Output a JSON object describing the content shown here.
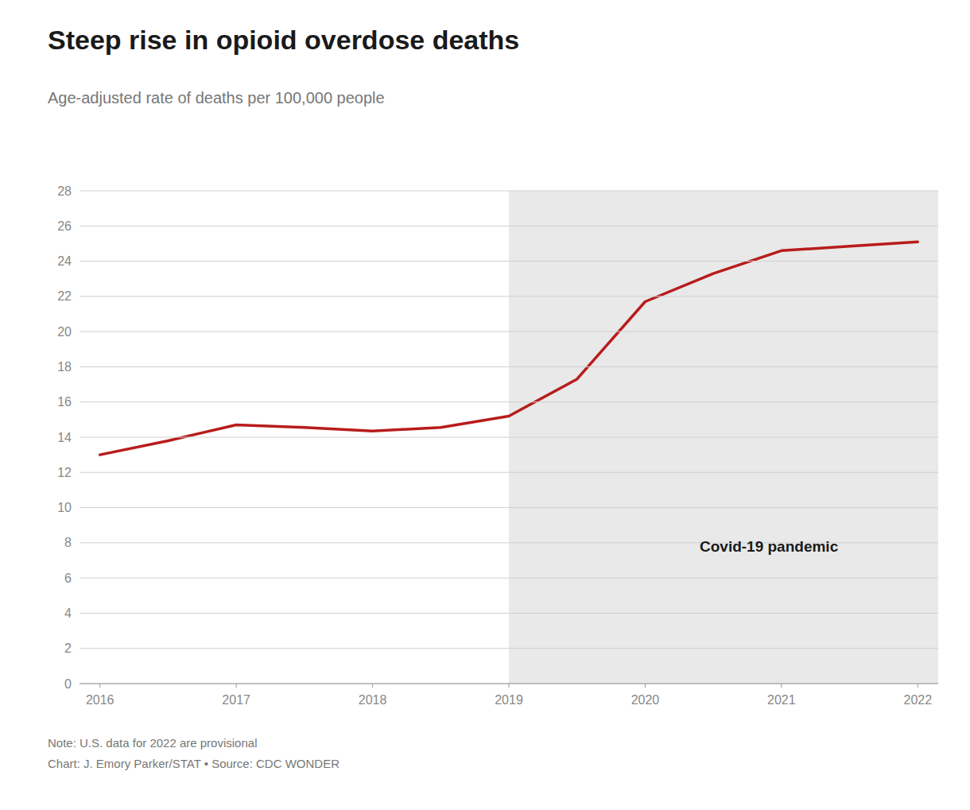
{
  "chart_data": {
    "type": "line",
    "title": "Steep rise in opioid overdose deaths",
    "subtitle": "Age-adjusted rate of deaths per 100,000 people",
    "note": "Note: U.S. data for 2022 are provisional",
    "credit": "Chart: J. Emory Parker/STAT • Source: CDC WONDER",
    "x": [
      2016,
      2016.5,
      2017,
      2017.5,
      2018,
      2018.5,
      2019,
      2019.5,
      2020,
      2020.5,
      2021,
      2021.5,
      2022
    ],
    "values": [
      13.0,
      13.8,
      14.7,
      14.55,
      14.35,
      14.55,
      15.2,
      17.3,
      21.7,
      23.3,
      24.6,
      24.85,
      25.1
    ],
    "color": "#b81c1c",
    "xlim": [
      2015.85,
      2022.15
    ],
    "xticks": [
      2016,
      2017,
      2018,
      2019,
      2020,
      2021,
      2022
    ],
    "ylim": [
      0,
      28
    ],
    "yticks": [
      0,
      2,
      4,
      6,
      8,
      10,
      12,
      14,
      16,
      18,
      20,
      22,
      24,
      26,
      28
    ],
    "grid": true,
    "annotations": [
      {
        "text": "Covid-19 pandemic",
        "x": 2020.4,
        "y": 7.8,
        "span": [
          2019,
          2022.15
        ],
        "color": "#e9e9e9"
      }
    ]
  }
}
